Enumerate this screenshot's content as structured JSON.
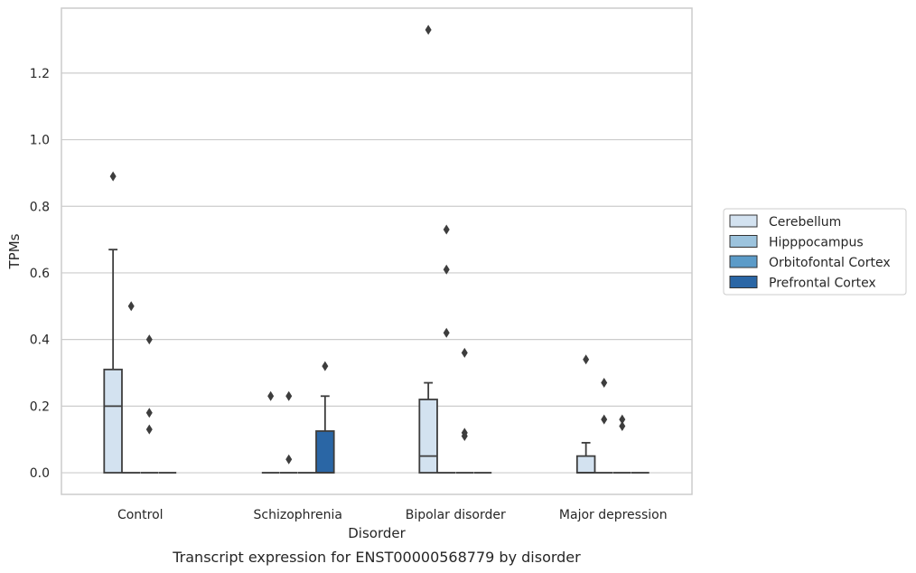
{
  "chart_data": {
    "type": "box",
    "title": "",
    "caption": "Transcript expression for ENST00000568779 by disorder",
    "xlabel": "Disorder",
    "ylabel": "TPMs",
    "ylim": [
      -0.065,
      1.395
    ],
    "yticks": [
      "0.0",
      "0.2",
      "0.4",
      "0.6",
      "0.8",
      "1.0",
      "1.2"
    ],
    "grid": "horizontal",
    "legend_position": "right",
    "categories": [
      "Control",
      "Schizophrenia",
      "Bipolar disorder",
      "Major depression"
    ],
    "series": [
      {
        "name": "Cerebellum",
        "color": "#d3e2f0",
        "boxes": [
          {
            "q1": 0.0,
            "median": 0.2,
            "q3": 0.31,
            "whisker_low": 0.0,
            "whisker_high": 0.67,
            "outliers": [
              0.89
            ]
          },
          {
            "q1": 0.0,
            "median": 0.0,
            "q3": 0.0,
            "whisker_low": 0.0,
            "whisker_high": 0.0,
            "outliers": [
              0.23
            ]
          },
          {
            "q1": 0.0,
            "median": 0.05,
            "q3": 0.22,
            "whisker_low": 0.0,
            "whisker_high": 0.27,
            "outliers": [
              1.33
            ]
          },
          {
            "q1": 0.0,
            "median": 0.0,
            "q3": 0.05,
            "whisker_low": 0.0,
            "whisker_high": 0.09,
            "outliers": [
              0.34
            ]
          }
        ]
      },
      {
        "name": "Hipppocampus",
        "color": "#9cc3dd",
        "boxes": [
          {
            "q1": 0.0,
            "median": 0.0,
            "q3": 0.0,
            "whisker_low": 0.0,
            "whisker_high": 0.0,
            "outliers": [
              0.5
            ]
          },
          {
            "q1": 0.0,
            "median": 0.0,
            "q3": 0.0,
            "whisker_low": 0.0,
            "whisker_high": 0.0,
            "outliers": [
              0.23,
              0.04
            ]
          },
          {
            "q1": 0.0,
            "median": 0.0,
            "q3": 0.0,
            "whisker_low": 0.0,
            "whisker_high": 0.0,
            "outliers": [
              0.61,
              0.73,
              0.42
            ]
          },
          {
            "q1": 0.0,
            "median": 0.0,
            "q3": 0.0,
            "whisker_low": 0.0,
            "whisker_high": 0.0,
            "outliers": [
              0.27,
              0.16
            ]
          }
        ]
      },
      {
        "name": "Orbitofontal Cortex",
        "color": "#5b9bc8",
        "boxes": [
          {
            "q1": 0.0,
            "median": 0.0,
            "q3": 0.0,
            "whisker_low": 0.0,
            "whisker_high": 0.0,
            "outliers": [
              0.4,
              0.18,
              0.13
            ]
          },
          {
            "q1": 0.0,
            "median": 0.0,
            "q3": 0.0,
            "whisker_low": 0.0,
            "whisker_high": 0.0,
            "outliers": []
          },
          {
            "q1": 0.0,
            "median": 0.0,
            "q3": 0.0,
            "whisker_low": 0.0,
            "whisker_high": 0.0,
            "outliers": [
              0.36,
              0.12,
              0.11
            ]
          },
          {
            "q1": 0.0,
            "median": 0.0,
            "q3": 0.0,
            "whisker_low": 0.0,
            "whisker_high": 0.0,
            "outliers": [
              0.16,
              0.14
            ]
          }
        ]
      },
      {
        "name": "Prefrontal Cortex",
        "color": "#2a66a5",
        "boxes": [
          {
            "q1": 0.0,
            "median": 0.0,
            "q3": 0.0,
            "whisker_low": 0.0,
            "whisker_high": 0.0,
            "outliers": []
          },
          {
            "q1": 0.0,
            "median": 0.0,
            "q3": 0.125,
            "whisker_low": 0.0,
            "whisker_high": 0.23,
            "outliers": [
              0.32
            ]
          },
          {
            "q1": 0.0,
            "median": 0.0,
            "q3": 0.0,
            "whisker_low": 0.0,
            "whisker_high": 0.0,
            "outliers": []
          },
          {
            "q1": 0.0,
            "median": 0.0,
            "q3": 0.0,
            "whisker_low": 0.0,
            "whisker_high": 0.0,
            "outliers": []
          }
        ]
      }
    ],
    "colors": {
      "box_edge": "#3d3d3d",
      "grid": "#cccccc",
      "frame": "#cccccc",
      "text": "#262626"
    }
  }
}
